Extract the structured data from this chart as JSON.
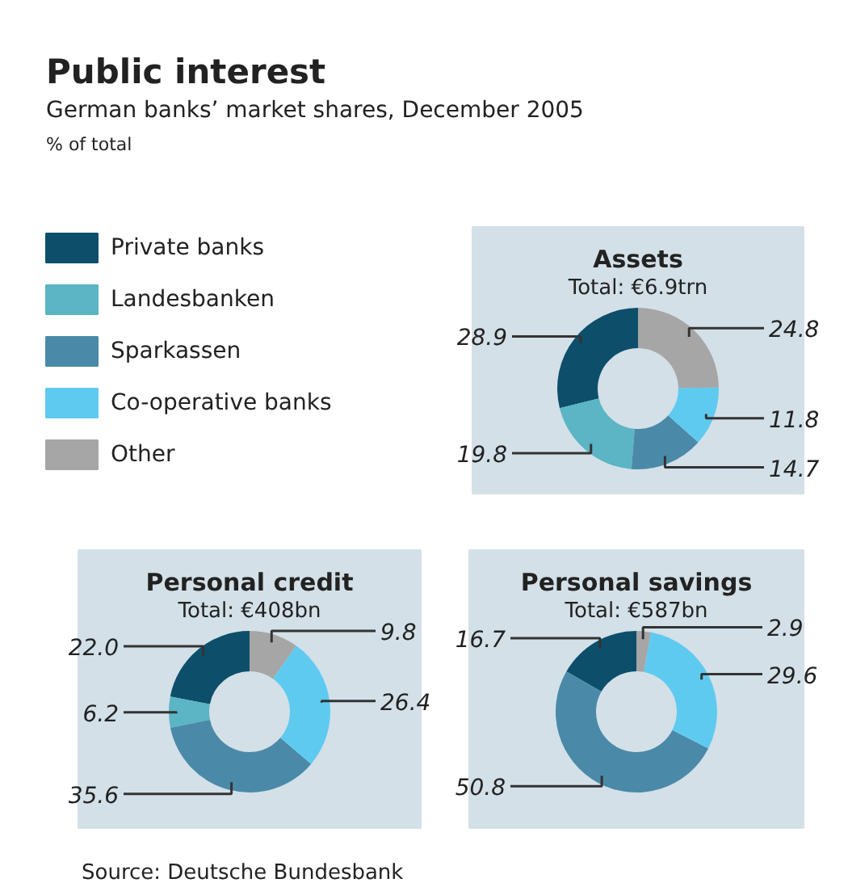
{
  "chart_data": [
    {
      "type": "other",
      "title": "Public interest",
      "subtitle": "German banks’ market shares, December 2005",
      "annotations": [
        "% of total",
        "Source: Deutsche Bundesbank"
      ]
    },
    {
      "type": "donut",
      "title": "Assets",
      "subtitle": "Total: €6.9trn",
      "categories": [
        "Private banks",
        "Landesbanken",
        "Sparkassen",
        "Co-operative banks",
        "Other"
      ],
      "values": [
        28.9,
        19.8,
        14.7,
        11.8,
        24.8
      ],
      "value_labels": [
        "28.9",
        "19.8",
        "14.7",
        "11.8",
        "24.8"
      ],
      "colors": [
        "#0d4f6b",
        "#5bb5c4",
        "#4a8aa8",
        "#5fcaf0",
        "#a6a6a6"
      ],
      "legend": "left"
    },
    {
      "type": "donut",
      "title": "Personal credit",
      "subtitle": "Total: €408bn",
      "categories": [
        null,
        null,
        null,
        null,
        null
      ],
      "values": [
        22.0,
        6.2,
        35.6,
        26.4,
        9.8
      ],
      "value_labels": [
        "22.0",
        "6.2",
        "35.6",
        "26.4",
        "9.8"
      ],
      "colors": [
        "#0d4f6b",
        "#5bb5c4",
        "#4a8aa8",
        "#5fcaf0",
        "#a6a6a6"
      ]
    },
    {
      "type": "donut",
      "title": "Personal savings",
      "subtitle": "Total: €587bn",
      "categories": [
        null,
        null,
        null,
        null,
        null
      ],
      "values": [
        16.7,
        null,
        50.8,
        29.6,
        2.9
      ],
      "value_labels": [
        "16.7",
        null,
        "50.8",
        "29.6",
        "2.9"
      ],
      "colors": [
        "#0d4f6b",
        "#5bb5c4",
        "#4a8aa8",
        "#5fcaf0",
        "#a6a6a6"
      ]
    }
  ]
}
